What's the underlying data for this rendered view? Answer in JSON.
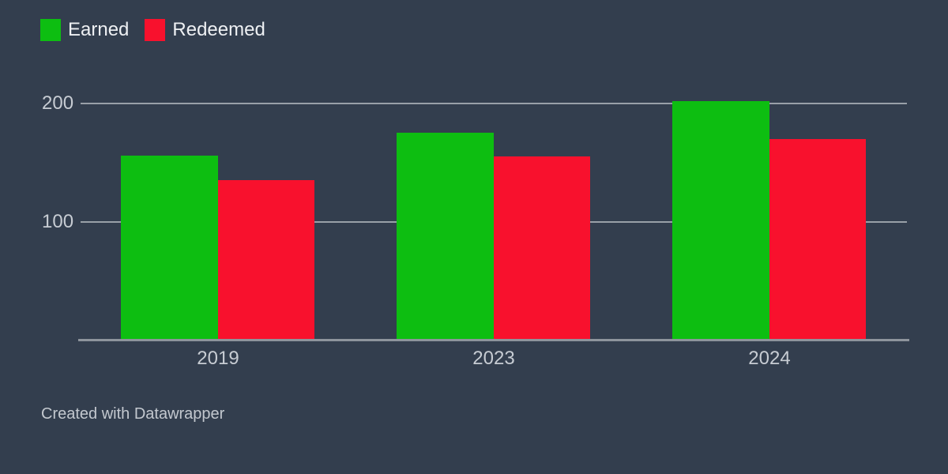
{
  "background_color": "#333e4e",
  "legend": {
    "items": [
      {
        "label": "Earned",
        "color": "#0dbe11"
      },
      {
        "label": "Redeemed",
        "color": "#f8112d"
      }
    ]
  },
  "footer": {
    "text": "Created with Datawrapper"
  },
  "chart_data": {
    "type": "bar",
    "title": "",
    "xlabel": "",
    "ylabel": "",
    "categories": [
      "2019",
      "2023",
      "2024"
    ],
    "series": [
      {
        "name": "Earned",
        "color": "#0dbe11",
        "values": [
          156,
          175,
          202
        ]
      },
      {
        "name": "Redeemed",
        "color": "#f8112d",
        "values": [
          135,
          155,
          170
        ]
      }
    ],
    "ylim": [
      0,
      220
    ],
    "y_ticks": [
      100,
      200
    ],
    "grid": "horizontal",
    "gridline_color": "#99a0a8",
    "axis_line_color": "#8e949c",
    "tick_label_color": "#c7ccd3",
    "legend_position": "top-left"
  }
}
